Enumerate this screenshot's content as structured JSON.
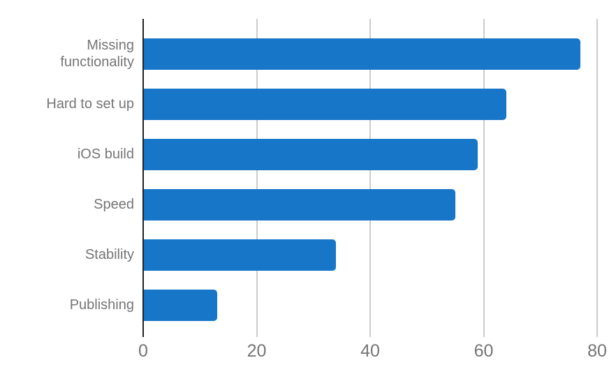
{
  "chart_data": {
    "type": "bar",
    "orientation": "horizontal",
    "title": "",
    "categories": [
      "Missing functionality",
      "Hard to set up",
      "iOS build",
      "Speed",
      "Stability",
      "Publishing"
    ],
    "values": [
      77,
      64,
      59,
      55,
      34,
      13
    ],
    "x_ticks": [
      "0",
      "20",
      "40",
      "60",
      "80"
    ],
    "xlim": [
      0,
      80
    ],
    "grid": true,
    "legend": "none",
    "colors": {
      "bar": "#1776c8",
      "gridline": "#cccccc",
      "axis_line": "#212121",
      "label_text": "#757575",
      "background": "#ffffff"
    }
  }
}
